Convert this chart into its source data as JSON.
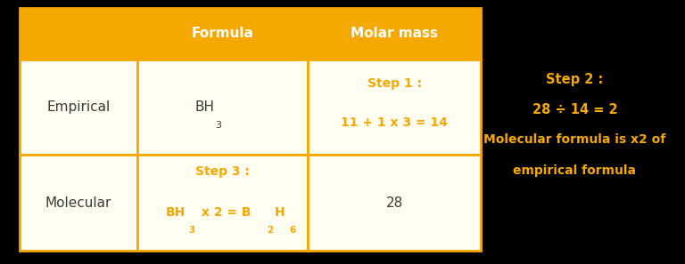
{
  "fig_width": 7.68,
  "fig_height": 2.97,
  "background_color": "#000000",
  "table_bg": "#fffef0",
  "header_bg": "#F5A800",
  "header_text_color": "#ffffff",
  "orange_color": "#F5A800",
  "dark_text": "#3a3a3a",
  "cell_border_color": "#F5A800",
  "header_label_formula": "Formula",
  "header_label_molar": "Molar mass",
  "row1_col0": "Empirical",
  "row2_col0": "Molecular",
  "side_note_line1": "Step 2 :",
  "side_note_line2": "28 ÷ 14 = 2",
  "side_note_line3": "Molecular formula is x2 of",
  "side_note_line4": "empirical formula"
}
